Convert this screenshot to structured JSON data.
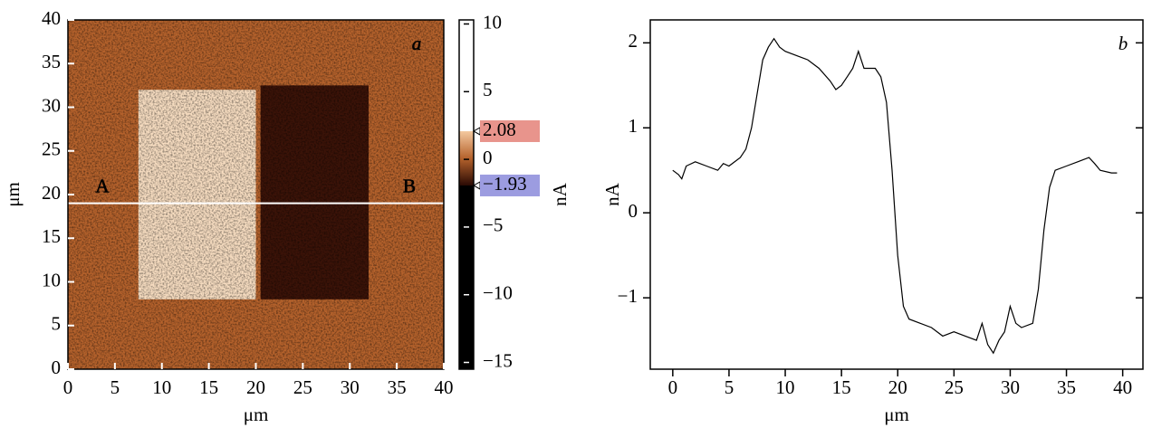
{
  "chart_data": [
    {
      "type": "image",
      "xlabel": "μm",
      "ylabel": "μm",
      "panel_label": "a",
      "xlim": [
        0,
        40
      ],
      "ylim": [
        0,
        40
      ],
      "xticks": [
        0,
        5,
        10,
        15,
        20,
        25,
        30,
        35,
        40
      ],
      "yticks": [
        0,
        5,
        10,
        15,
        20,
        25,
        30,
        35,
        40
      ],
      "background_color": "#b5622c",
      "regions": [
        {
          "x": [
            7.5,
            20
          ],
          "y": [
            8,
            32
          ],
          "color": "#f6dcc0"
        },
        {
          "x": [
            20.5,
            32
          ],
          "y": [
            8,
            32.5
          ],
          "color": "#3b1308"
        }
      ],
      "profile": {
        "y": 19,
        "start_label": "A",
        "end_label": "B",
        "color": "#ffffff"
      },
      "colorbar": {
        "label": "nA",
        "lim": [
          -15.5,
          10.3
        ],
        "ticks": [
          10,
          5,
          0,
          {
            "value": -5,
            "label": "−5"
          },
          {
            "value": -10,
            "label": "−10"
          },
          {
            "value": -15,
            "label": "−15"
          }
        ],
        "markers": [
          {
            "value": 2.08,
            "label": "2.08",
            "color": "#e8948c"
          },
          {
            "value": -1.93,
            "label": "−1.93",
            "color": "#9c9ce0"
          }
        ]
      }
    },
    {
      "type": "line",
      "xlabel": "μm",
      "ylabel": "nA",
      "panel_label": "b",
      "color": "#000000",
      "xlim": [
        -2,
        41.8
      ],
      "ylim": [
        -1.84,
        2.27
      ],
      "xticks": [
        0,
        5,
        10,
        15,
        20,
        25,
        30,
        35,
        40
      ],
      "yticks": [
        {
          "value": -1,
          "label": "−1"
        },
        0,
        1,
        2
      ],
      "x": [
        0,
        0.5,
        0.8,
        1.2,
        2,
        3,
        4,
        4.5,
        5,
        6,
        6.5,
        7,
        7.5,
        8,
        8.5,
        9,
        9.5,
        10,
        11,
        12,
        13,
        14,
        14.5,
        15,
        15.5,
        16,
        16.5,
        17,
        18,
        18.5,
        19,
        19.5,
        20,
        20.5,
        21,
        22,
        23,
        24,
        25,
        26,
        27,
        27.5,
        28,
        28.5,
        29,
        29.5,
        30,
        30.5,
        31,
        32,
        32.5,
        33,
        33.5,
        34,
        35,
        36,
        37,
        37.5,
        38,
        39,
        39.5
      ],
      "values": [
        0.5,
        0.45,
        0.4,
        0.55,
        0.6,
        0.55,
        0.5,
        0.58,
        0.55,
        0.65,
        0.75,
        1.0,
        1.4,
        1.8,
        1.95,
        2.05,
        1.95,
        1.9,
        1.85,
        1.8,
        1.7,
        1.55,
        1.45,
        1.5,
        1.6,
        1.7,
        1.9,
        1.7,
        1.7,
        1.6,
        1.3,
        0.5,
        -0.5,
        -1.1,
        -1.25,
        -1.3,
        -1.35,
        -1.45,
        -1.4,
        -1.45,
        -1.5,
        -1.3,
        -1.55,
        -1.65,
        -1.5,
        -1.4,
        -1.1,
        -1.3,
        -1.35,
        -1.3,
        -0.9,
        -0.2,
        0.3,
        0.5,
        0.55,
        0.6,
        0.65,
        0.58,
        0.5,
        0.47,
        0.47
      ]
    }
  ]
}
